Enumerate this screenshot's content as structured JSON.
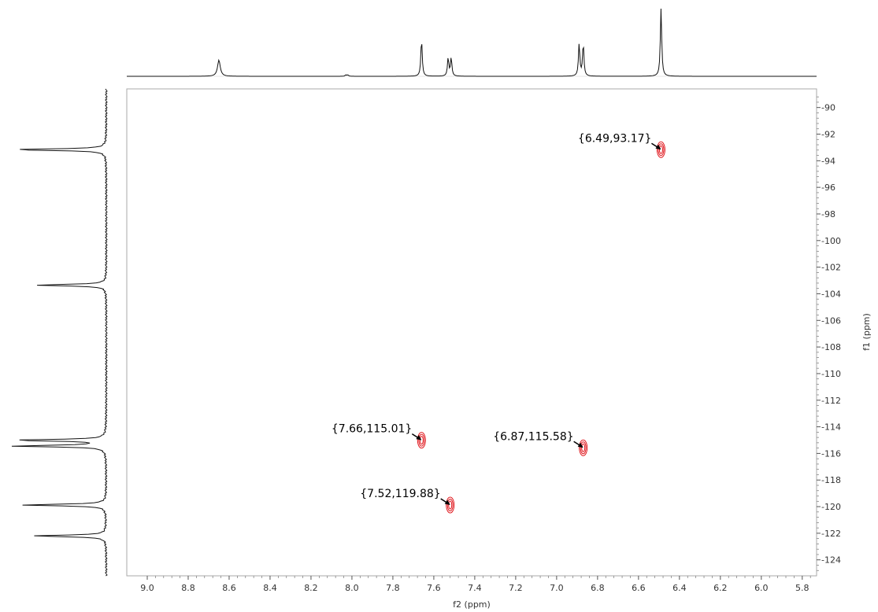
{
  "chart_data": {
    "type": "scatter",
    "xlabel": "f2 (ppm)",
    "ylabel": "f1 (ppm)",
    "xlim": [
      9.1,
      5.73
    ],
    "ylim": [
      88.6,
      125.2
    ],
    "x_ticks": [
      "9.0",
      "8.8",
      "8.6",
      "8.4",
      "8.2",
      "8.0",
      "7.8",
      "7.6",
      "7.4",
      "7.2",
      "7.0",
      "6.8",
      "6.6",
      "6.4",
      "6.2",
      "6.0",
      "5.8"
    ],
    "y_ticks": [
      "90",
      "92",
      "94",
      "96",
      "98",
      "100",
      "102",
      "104",
      "106",
      "108",
      "110",
      "112",
      "114",
      "116",
      "118",
      "120",
      "122",
      "124"
    ],
    "grid": false,
    "cross_peaks": [
      {
        "x": 6.49,
        "y": 93.17,
        "label": "{6.49,93.17}"
      },
      {
        "x": 7.66,
        "y": 115.01,
        "label": "{7.66,115.01}"
      },
      {
        "x": 6.87,
        "y": 115.58,
        "label": "{6.87,115.58}"
      },
      {
        "x": 7.52,
        "y": 119.88,
        "label": "{7.52,119.88}"
      }
    ],
    "top_projection_peaks": [
      {
        "x": 8.65,
        "height": 0.24
      },
      {
        "x": 8.03,
        "height": 0.02
      },
      {
        "x": 8.02,
        "height": 0.02
      },
      {
        "x": 7.66,
        "height": 0.55
      },
      {
        "x": 7.53,
        "height": 0.27
      },
      {
        "x": 7.515,
        "height": 0.27
      },
      {
        "x": 6.89,
        "height": 0.48
      },
      {
        "x": 6.87,
        "height": 0.48
      },
      {
        "x": 6.49,
        "height": 1.0
      }
    ],
    "left_projection_peaks": [
      {
        "y": 93.17,
        "height": 1.0
      },
      {
        "y": 103.35,
        "height": 0.73
      },
      {
        "y": 115.01,
        "height": 0.98
      },
      {
        "y": 115.45,
        "height": 0.97
      },
      {
        "y": 119.88,
        "height": 0.88
      },
      {
        "y": 122.2,
        "height": 0.77
      }
    ],
    "contour_color": "#e0191f"
  }
}
